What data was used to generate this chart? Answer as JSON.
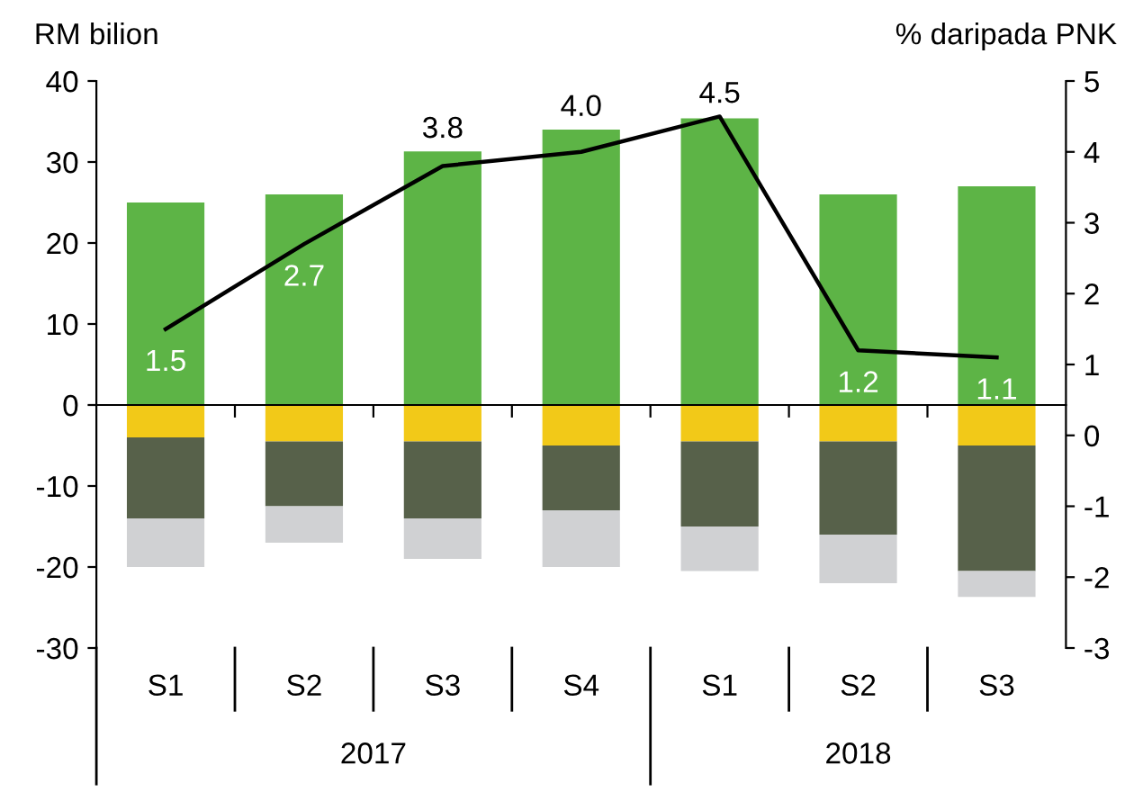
{
  "chart_data": {
    "type": "bar",
    "stacked": true,
    "categories": [
      "S1",
      "S2",
      "S3",
      "S4",
      "S1",
      "S2",
      "S3"
    ],
    "ylabel": "RM bilion",
    "y2label": "% daripada PNK",
    "series": [
      {
        "color": "#5db446",
        "values": [
          25,
          26,
          31.3,
          34,
          35.4,
          26,
          27
        ]
      },
      {
        "color": "#f2c918",
        "values": [
          -4,
          -4.5,
          -4.5,
          -5,
          -4.5,
          -4.5,
          -5
        ]
      },
      {
        "color": "#57614a",
        "values": [
          -10,
          -8,
          -9.5,
          -8,
          -10.5,
          -11.5,
          -15.5
        ]
      },
      {
        "color": "#d0d1d3",
        "values": [
          -6,
          -4.5,
          -5,
          -7,
          -5.5,
          -6,
          -3.2
        ]
      },
      {
        "type": "line",
        "axis": "y2",
        "color": "#000000",
        "values": [
          1.5,
          2.7,
          3.8,
          4.0,
          4.5,
          1.2,
          1.1
        ],
        "value_labels": [
          "1.5",
          "2.7",
          "3.8",
          "4.0",
          "4.5",
          "1.2",
          "1.1"
        ]
      }
    ],
    "ylim": [
      -30,
      40
    ],
    "yticks": [
      -30,
      -20,
      -10,
      0,
      10,
      20,
      30,
      40
    ],
    "y2lim": [
      -3,
      5
    ],
    "y2ticks": [
      -3,
      -2,
      -1,
      0,
      1,
      2,
      3,
      4,
      5
    ],
    "annotations": [
      "2017",
      "2018"
    ],
    "legend": false
  }
}
